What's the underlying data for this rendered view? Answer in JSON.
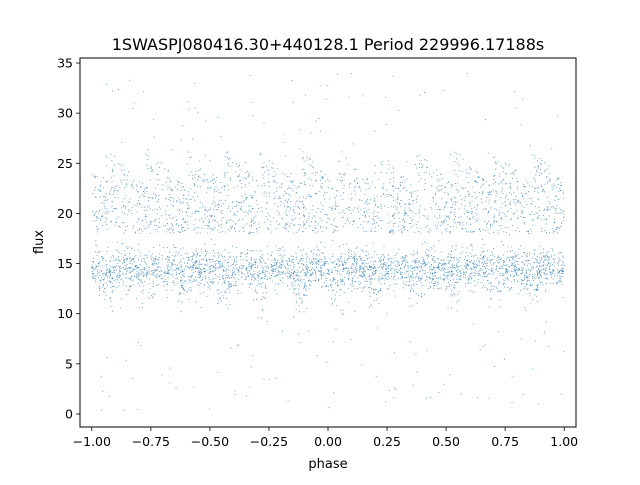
{
  "chart_data": {
    "type": "scatter",
    "title": "1SWASPJ080416.30+440128.1 Period 229996.17188s",
    "xlabel": "phase",
    "ylabel": "flux",
    "xlim": [
      -1.05,
      1.05
    ],
    "ylim": [
      -1.3,
      35.5
    ],
    "xticks": [
      -1.0,
      -0.75,
      -0.5,
      -0.25,
      0.0,
      0.25,
      0.5,
      0.75,
      1.0
    ],
    "xtick_labels": [
      "−1.00",
      "−0.75",
      "−0.50",
      "−0.25",
      "0.00",
      "0.25",
      "0.50",
      "0.75",
      "1.00"
    ],
    "yticks": [
      0,
      5,
      10,
      15,
      20,
      25,
      30,
      35
    ],
    "ytick_labels": [
      "0",
      "5",
      "10",
      "15",
      "20",
      "25",
      "30",
      "35"
    ],
    "grid": false,
    "marker_color": "#1f77b4",
    "x_range": [
      -1.0,
      1.0
    ],
    "main_band": [
      11,
      18
    ],
    "upper_band": [
      18,
      26.5
    ],
    "outlier_range": [
      0,
      34
    ],
    "sawtooth_minima_phase": [
      -0.94,
      -0.77,
      -0.6,
      -0.44,
      -0.29,
      -0.12,
      0.04,
      0.2,
      0.37,
      0.53,
      0.7,
      0.86
    ]
  }
}
